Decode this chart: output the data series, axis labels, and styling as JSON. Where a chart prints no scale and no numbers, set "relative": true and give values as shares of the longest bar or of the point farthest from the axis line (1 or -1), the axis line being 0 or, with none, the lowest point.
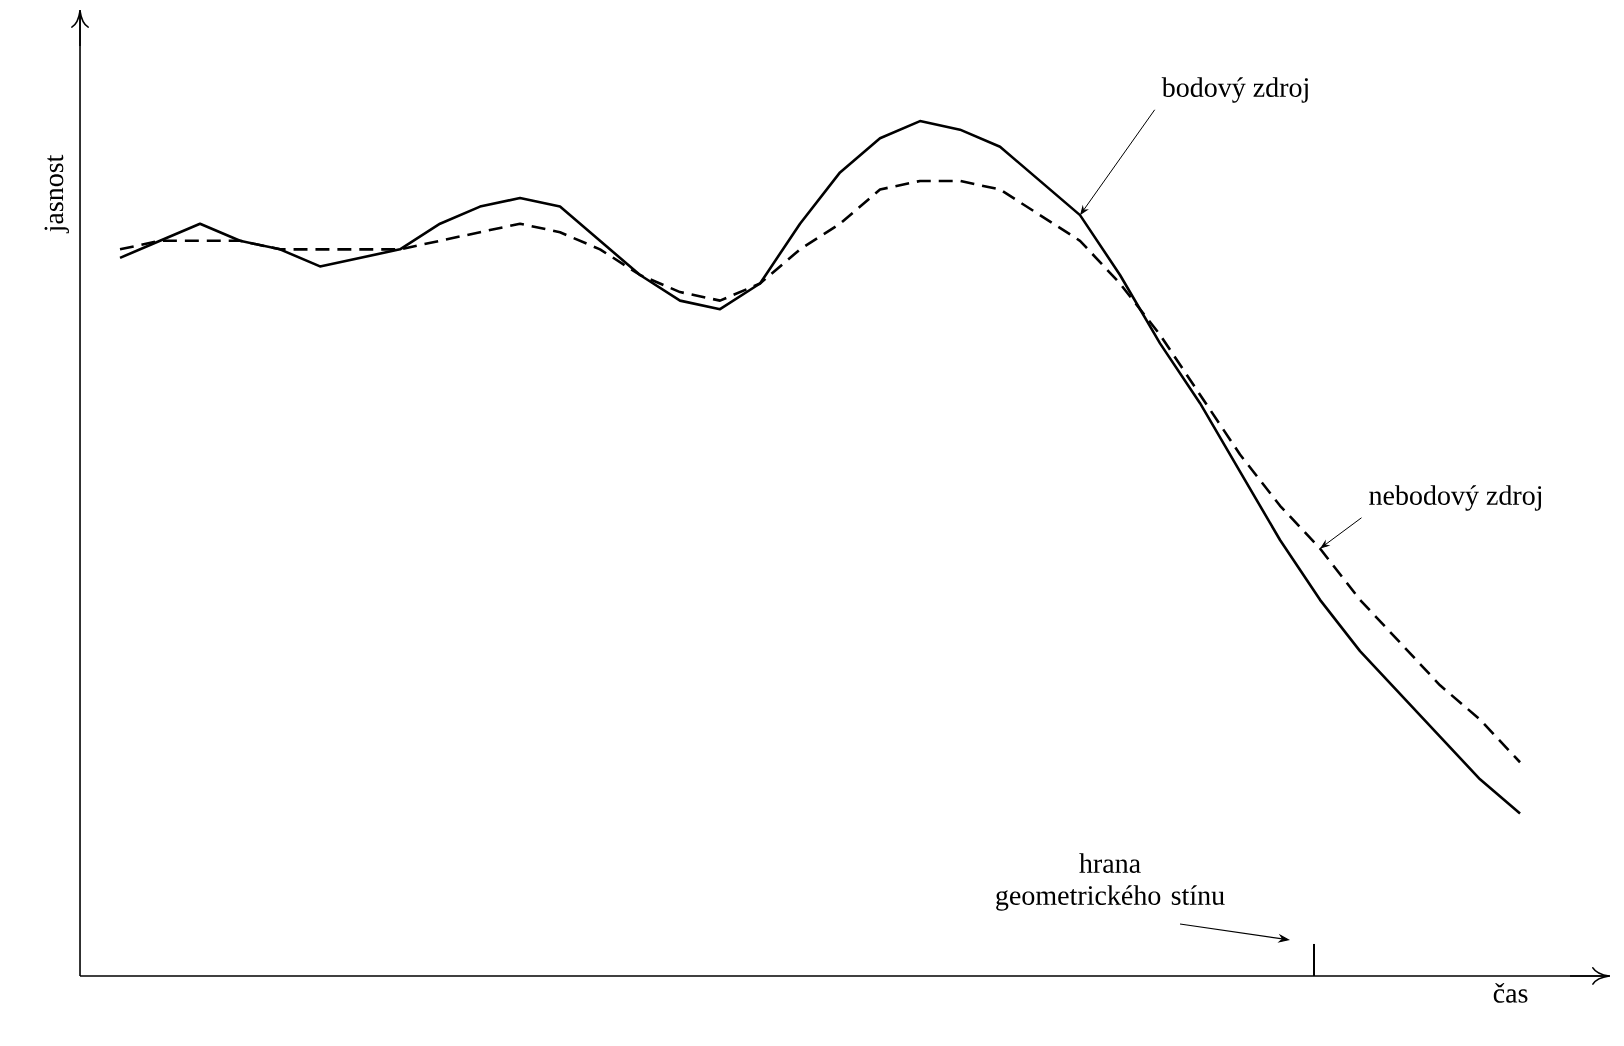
{
  "chart_data": {
    "type": "line",
    "relative": true,
    "xlabel": "čas",
    "ylabel": "jasnost",
    "marker": "none",
    "categories": [
      null,
      null,
      null,
      null,
      null,
      null,
      null,
      null,
      null,
      null,
      null,
      null,
      null,
      null,
      null,
      null,
      null,
      null,
      null,
      null,
      null,
      null,
      null,
      null,
      null,
      null,
      null,
      null,
      null,
      null,
      null,
      null,
      null,
      null,
      null,
      null
    ],
    "series": [
      {
        "name": "bodový zdroj",
        "color": "#000000",
        "line_style": "solid",
        "values": [
          0.84,
          0.86,
          0.88,
          0.86,
          0.85,
          0.83,
          0.84,
          0.85,
          0.88,
          0.9,
          0.91,
          0.9,
          0.86,
          0.82,
          0.79,
          0.78,
          0.81,
          0.88,
          0.94,
          0.98,
          1.0,
          0.99,
          0.97,
          0.93,
          0.89,
          0.82,
          0.74,
          0.67,
          0.59,
          0.51,
          0.44,
          0.38,
          0.33,
          0.28,
          0.23,
          0.19
        ]
      },
      {
        "name": "nebodový zdroj",
        "color": "#000000",
        "line_style": "dashed",
        "values": [
          0.85,
          0.86,
          0.86,
          0.86,
          0.85,
          0.85,
          0.85,
          0.85,
          0.86,
          0.87,
          0.88,
          0.87,
          0.85,
          0.82,
          0.8,
          0.79,
          0.81,
          0.85,
          0.88,
          0.92,
          0.93,
          0.93,
          0.92,
          0.89,
          0.86,
          0.81,
          0.75,
          0.68,
          0.61,
          0.55,
          0.5,
          0.44,
          0.39,
          0.34,
          0.3,
          0.25
        ]
      }
    ],
    "annotations": [
      "hrana geometrického stínu"
    ]
  }
}
